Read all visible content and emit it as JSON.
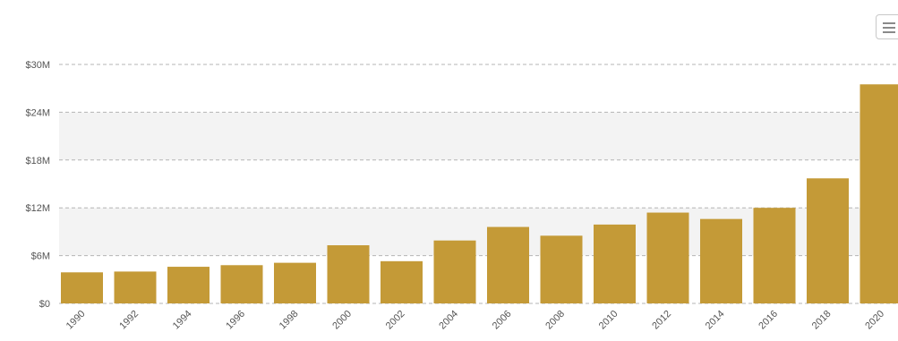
{
  "chart_data": {
    "type": "bar",
    "categories": [
      "1990",
      "1992",
      "1994",
      "1996",
      "1998",
      "2000",
      "2002",
      "2004",
      "2006",
      "2008",
      "2010",
      "2012",
      "2014",
      "2016",
      "2018",
      "2020"
    ],
    "values": [
      3.9,
      4.0,
      4.6,
      4.8,
      5.1,
      7.3,
      5.3,
      7.9,
      9.6,
      8.5,
      9.9,
      11.4,
      10.6,
      12.0,
      15.7,
      27.5
    ],
    "ytick_labels": [
      "$0",
      "$6M",
      "$12M",
      "$18M",
      "$24M",
      "$30M"
    ],
    "ytick_values": [
      0,
      6,
      12,
      18,
      24,
      30
    ],
    "ylim": [
      0,
      30
    ],
    "unit": "millions USD",
    "grid": true,
    "bar_color": "#c49a37",
    "band_color": "#f3f3f3",
    "title": "",
    "xlabel": "",
    "ylabel": ""
  },
  "toolbar": {
    "menu_icon": "hamburger-menu-icon"
  }
}
